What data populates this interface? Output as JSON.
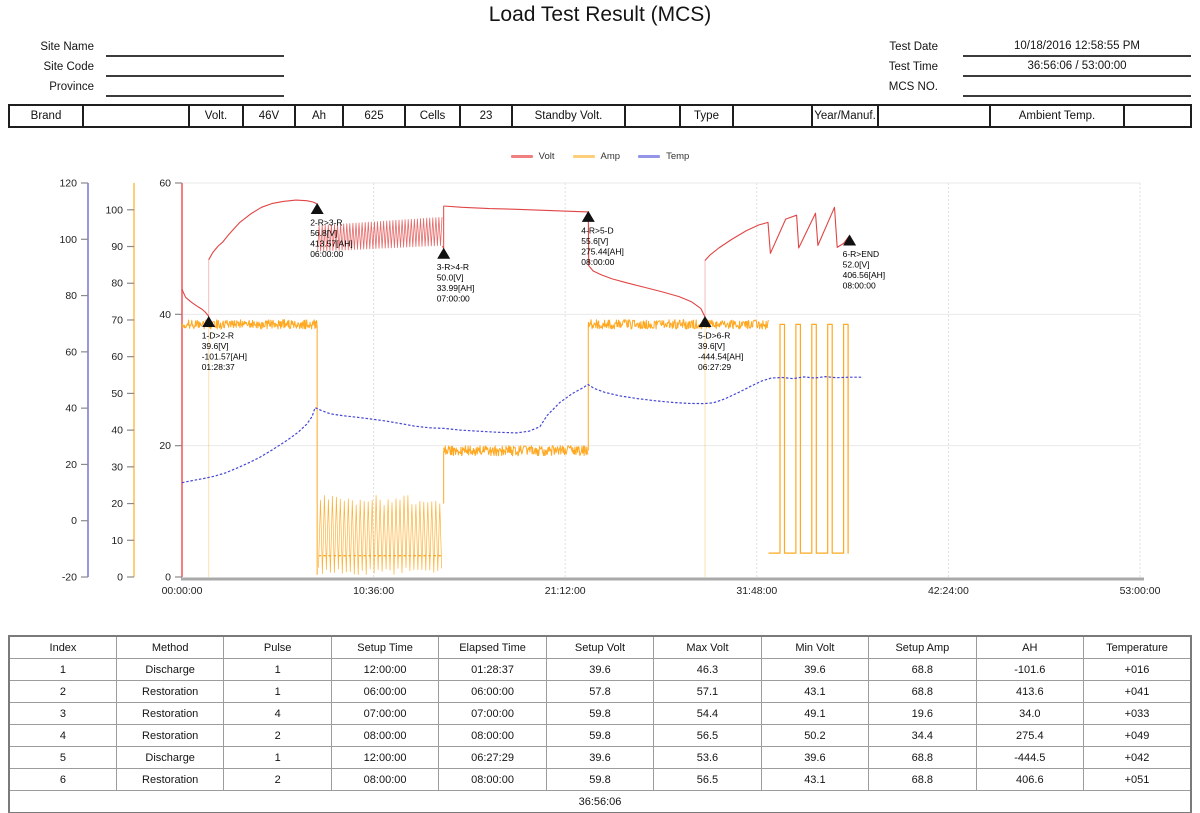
{
  "title": "Load Test Result (MCS)",
  "header": {
    "left_fields": [
      {
        "label": "Site Name",
        "value": ""
      },
      {
        "label": "Site Code",
        "value": ""
      },
      {
        "label": "Province",
        "value": ""
      }
    ],
    "right_fields": [
      {
        "label": "Test Date",
        "value": "10/18/2016 12:58:55 PM"
      },
      {
        "label": "Test Time",
        "value": "36:56:06 / 53:00:00"
      },
      {
        "label": "MCS NO.",
        "value": ""
      }
    ]
  },
  "spec_row": {
    "cells": [
      "Brand",
      "",
      "Volt.",
      "46V",
      "Ah",
      "625",
      "Cells",
      "23",
      "Standby Volt.",
      "",
      "Type",
      "",
      "Year/Manuf.",
      "",
      "Ambient Temp.",
      ""
    ]
  },
  "chart_data": {
    "type": "line",
    "title": "",
    "legend": [
      {
        "label": "Volt",
        "color": "#f08080"
      },
      {
        "label": "Amp",
        "color": "#ffce7a"
      },
      {
        "label": "Temp",
        "color": "#9595e8"
      }
    ],
    "x_axis": {
      "min": 0,
      "max": 53,
      "tick_labels": [
        "00:00:00",
        "10:36:00",
        "21:12:00",
        "31:48:00",
        "42:24:00",
        "53:00:00"
      ],
      "unit": "h:m:s"
    },
    "axes": {
      "volt": {
        "min": 0,
        "max": 60,
        "ticks": [
          0,
          20,
          40,
          60
        ],
        "color": "#f28080"
      },
      "amp": {
        "min": 0,
        "max": 107.3,
        "ticks": [
          0,
          10,
          20,
          30,
          40,
          50,
          60,
          70,
          80,
          90,
          100
        ],
        "color": "#ffce7a"
      },
      "temp": {
        "min": -20,
        "max": 120,
        "ticks": [
          -20,
          0,
          20,
          40,
          60,
          80,
          100,
          120
        ],
        "color": "#9898de"
      }
    },
    "series": [
      {
        "name": "Volt",
        "axis": "volt",
        "color": "#e04545",
        "segments": [
          {
            "type": "line",
            "points": [
              [
                0,
                43.8
              ],
              [
                0.2,
                42.6
              ],
              [
                0.5,
                41.9
              ],
              [
                0.8,
                41.3
              ],
              [
                1.1,
                40.8
              ],
              [
                1.3,
                40.3
              ],
              [
                1.45,
                39.8
              ],
              [
                1.477,
                39.6
              ]
            ]
          },
          {
            "type": "vline",
            "t": 1.477,
            "v0": 39.6,
            "v1": 48.3,
            "light": true
          },
          {
            "type": "line",
            "points": [
              [
                1.477,
                48.3
              ],
              [
                1.7,
                49.4
              ],
              [
                2.0,
                50.4
              ],
              [
                2.25,
                51.0
              ],
              [
                2.6,
                52.2
              ],
              [
                3.2,
                54.0
              ],
              [
                3.8,
                55.3
              ],
              [
                4.4,
                56.3
              ],
              [
                5.0,
                56.9
              ],
              [
                5.6,
                57.2
              ],
              [
                6.3,
                57.4
              ],
              [
                6.9,
                57.3
              ],
              [
                7.25,
                57.1
              ],
              [
                7.477,
                56.8
              ]
            ]
          },
          {
            "type": "zigzag",
            "t0": 7.5,
            "t1": 14.42,
            "lo0": 49.6,
            "lo1": 50.5,
            "hi0": 53.5,
            "hi1": 54.8,
            "period": 0.17
          },
          {
            "type": "line",
            "points": [
              [
                14.42,
                50.4
              ],
              [
                14.477,
                50.0
              ]
            ]
          },
          {
            "type": "vline",
            "t": 14.477,
            "v0": 50.0,
            "v1": 56.5,
            "light": false
          },
          {
            "type": "line",
            "points": [
              [
                14.477,
                56.5
              ],
              [
                15.5,
                56.3
              ],
              [
                17.0,
                56.1
              ],
              [
                18.5,
                56.0
              ],
              [
                20.0,
                55.85
              ],
              [
                21.3,
                55.7
              ],
              [
                22.477,
                55.6
              ]
            ]
          },
          {
            "type": "line",
            "points": [
              [
                22.477,
                55.6
              ],
              [
                22.5,
                47.4
              ],
              [
                22.75,
                46.6
              ],
              [
                23.2,
                46.0
              ],
              [
                23.8,
                45.4
              ],
              [
                24.6,
                44.8
              ],
              [
                25.6,
                44.1
              ],
              [
                26.6,
                43.4
              ],
              [
                27.5,
                42.7
              ],
              [
                28.2,
                41.9
              ],
              [
                28.7,
                40.9
              ],
              [
                28.935,
                39.6
              ]
            ]
          },
          {
            "type": "vline",
            "t": 28.935,
            "v0": 39.6,
            "v1": 48.2,
            "light": true
          },
          {
            "type": "line",
            "points": [
              [
                28.935,
                48.2
              ],
              [
                29.2,
                49.0
              ],
              [
                29.7,
                50.1
              ],
              [
                30.4,
                51.4
              ],
              [
                31.2,
                52.7
              ],
              [
                31.9,
                53.6
              ],
              [
                32.42,
                54.0
              ],
              [
                32.55,
                49.3
              ],
              [
                33.4,
                54.5
              ],
              [
                34.0,
                55.1
              ],
              [
                34.12,
                50.1
              ],
              [
                35.05,
                55.4
              ],
              [
                35.18,
                50.5
              ],
              [
                36.1,
                56.3
              ],
              [
                36.25,
                50.2
              ],
              [
                36.6,
                50.8
              ],
              [
                36.935,
                52.0
              ]
            ]
          }
        ]
      },
      {
        "name": "Amp",
        "axis": "amp",
        "color": "#ffa820",
        "segments": [
          {
            "type": "noiseband",
            "t0": 0,
            "t1": 7.477,
            "v": 68.8,
            "amp": 1.3
          },
          {
            "type": "vline",
            "t": 1.477,
            "v0": 0,
            "v1": 68.8,
            "light": true
          },
          {
            "type": "vline",
            "t": 7.477,
            "v0": 0.6,
            "v1": 68.8,
            "light": false
          },
          {
            "type": "spiketrain",
            "t0": 7.55,
            "t1": 14.42,
            "lo": 0.6,
            "hi": 20.8,
            "base": 5.8,
            "period": 0.22
          },
          {
            "type": "vline",
            "t": 14.477,
            "v0": 20.0,
            "v1": 34.4,
            "light": false
          },
          {
            "type": "noiseband",
            "t0": 14.477,
            "t1": 22.477,
            "v": 34.4,
            "amp": 1.4
          },
          {
            "type": "vline",
            "t": 22.477,
            "v0": 34.4,
            "v1": 68.8,
            "light": false
          },
          {
            "type": "noiseband",
            "t0": 22.477,
            "t1": 32.45,
            "v": 68.8,
            "amp": 1.3
          },
          {
            "type": "vline",
            "t": 28.935,
            "v0": 0,
            "v1": 68.8,
            "light": true
          },
          {
            "type": "pulse",
            "t0": 32.45,
            "t1": 36.88,
            "lo": 6.5,
            "hi": 68.8,
            "period": 0.88,
            "duty": 0.28
          }
        ]
      },
      {
        "name": "Temp",
        "axis": "temp",
        "color": "#4747d6",
        "dash": "2.5,1.8",
        "segments": [
          {
            "type": "line",
            "points": [
              [
                0,
                13.5
              ],
              [
                0.6,
                14.3
              ],
              [
                1.2,
                15.0
              ],
              [
                1.8,
                15.8
              ],
              [
                2.4,
                17.0
              ],
              [
                3.0,
                18.6
              ],
              [
                3.6,
                20.3
              ],
              [
                4.3,
                22.5
              ],
              [
                5.0,
                25.2
              ],
              [
                5.8,
                28.5
              ],
              [
                6.4,
                31.3
              ],
              [
                6.9,
                34.3
              ],
              [
                7.2,
                37.0
              ],
              [
                7.36,
                40.2
              ],
              [
                7.7,
                39.2
              ],
              [
                8.2,
                38.0
              ],
              [
                8.9,
                37.3
              ],
              [
                9.6,
                36.8
              ],
              [
                10.5,
                36.1
              ],
              [
                11.3,
                35.4
              ],
              [
                12.1,
                34.5
              ],
              [
                12.9,
                33.6
              ],
              [
                13.7,
                33.0
              ],
              [
                14.5,
                32.8
              ],
              [
                15.4,
                32.2
              ],
              [
                16.4,
                31.8
              ],
              [
                17.5,
                31.4
              ],
              [
                18.5,
                31.2
              ],
              [
                19.2,
                31.8
              ],
              [
                19.8,
                33.4
              ],
              [
                20.2,
                37.4
              ],
              [
                20.9,
                42.0
              ],
              [
                21.6,
                45.2
              ],
              [
                22.2,
                47.3
              ],
              [
                22.46,
                48.4
              ],
              [
                22.8,
                47.0
              ],
              [
                23.4,
                45.6
              ],
              [
                24.2,
                44.4
              ],
              [
                25.2,
                43.4
              ],
              [
                26.2,
                42.6
              ],
              [
                27.2,
                42.0
              ],
              [
                28.0,
                41.7
              ],
              [
                28.9,
                41.6
              ],
              [
                29.4,
                41.9
              ],
              [
                30.0,
                43.2
              ],
              [
                30.8,
                45.6
              ],
              [
                31.5,
                47.9
              ],
              [
                32.1,
                49.7
              ],
              [
                32.6,
                50.7
              ],
              [
                33.2,
                50.9
              ],
              [
                33.8,
                50.5
              ],
              [
                34.4,
                51.1
              ],
              [
                35.0,
                50.7
              ],
              [
                35.6,
                51.2
              ],
              [
                36.2,
                50.8
              ],
              [
                36.9,
                51.0
              ],
              [
                37.6,
                51.0
              ]
            ]
          }
        ]
      }
    ],
    "annotations": [
      {
        "label": "1-D>2-R",
        "volt": "39.6[V]",
        "ah": "-101.57[AH]",
        "time": "01:28:37",
        "t": 1.477,
        "v": 39.6
      },
      {
        "label": "2-R>3-R",
        "volt": "56.8[V]",
        "ah": "413.57[AH]",
        "time": "06:00:00",
        "t": 7.477,
        "v": 56.8
      },
      {
        "label": "3-R>4-R",
        "volt": "50.0[V]",
        "ah": "33.99[AH]",
        "time": "07:00:00",
        "t": 14.477,
        "v": 50.0
      },
      {
        "label": "4-R>5-D",
        "volt": "55.6[V]",
        "ah": "275.44[AH]",
        "time": "08:00:00",
        "t": 22.477,
        "v": 55.6
      },
      {
        "label": "5-D>6-R",
        "volt": "39.6[V]",
        "ah": "-444.54[AH]",
        "time": "06:27:29",
        "t": 28.935,
        "v": 39.6
      },
      {
        "label": "6-R>END",
        "volt": "52.0[V]",
        "ah": "406.56[AH]",
        "time": "08:00:00",
        "t": 36.935,
        "v": 52.0
      }
    ]
  },
  "table": {
    "headers": [
      "Index",
      "Method",
      "Pulse",
      "Setup Time",
      "Elapsed Time",
      "Setup Volt",
      "Max Volt",
      "Min Volt",
      "Setup Amp",
      "AH",
      "Temperature"
    ],
    "rows": [
      [
        "1",
        "Discharge",
        "1",
        "12:00:00",
        "01:28:37",
        "39.6",
        "46.3",
        "39.6",
        "68.8",
        "-101.6",
        "+016"
      ],
      [
        "2",
        "Restoration",
        "1",
        "06:00:00",
        "06:00:00",
        "57.8",
        "57.1",
        "43.1",
        "68.8",
        "413.6",
        "+041"
      ],
      [
        "3",
        "Restoration",
        "4",
        "07:00:00",
        "07:00:00",
        "59.8",
        "54.4",
        "49.1",
        "19.6",
        "34.0",
        "+033"
      ],
      [
        "4",
        "Restoration",
        "2",
        "08:00:00",
        "08:00:00",
        "59.8",
        "56.5",
        "50.2",
        "34.4",
        "275.4",
        "+049"
      ],
      [
        "5",
        "Discharge",
        "1",
        "12:00:00",
        "06:27:29",
        "39.6",
        "53.6",
        "39.6",
        "68.8",
        "-444.5",
        "+042"
      ],
      [
        "6",
        "Restoration",
        "2",
        "08:00:00",
        "08:00:00",
        "59.8",
        "56.5",
        "43.1",
        "68.8",
        "406.6",
        "+051"
      ]
    ],
    "footer": "36:56:06"
  }
}
